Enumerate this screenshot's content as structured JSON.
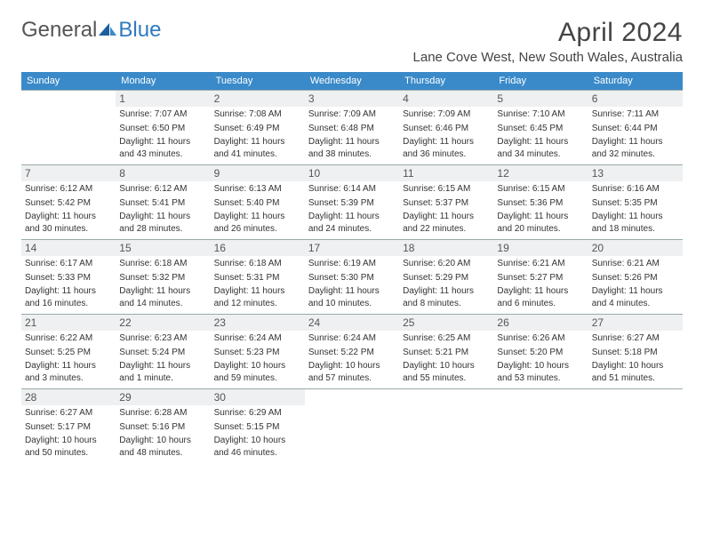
{
  "logo": {
    "part1": "General",
    "part2": "Blue"
  },
  "title": "April 2024",
  "location": "Lane Cove West, New South Wales, Australia",
  "colors": {
    "header_bg": "#3a8ac9",
    "daynum_bg": "#eef0f1",
    "row_border": "#9aa5aa",
    "logo_blue": "#2f7abf"
  },
  "weekdays": [
    "Sunday",
    "Monday",
    "Tuesday",
    "Wednesday",
    "Thursday",
    "Friday",
    "Saturday"
  ],
  "weeks": [
    [
      {
        "day": "",
        "sunrise": "",
        "sunset": "",
        "daylight": ""
      },
      {
        "day": "1",
        "sunrise": "Sunrise: 7:07 AM",
        "sunset": "Sunset: 6:50 PM",
        "daylight": "Daylight: 11 hours and 43 minutes."
      },
      {
        "day": "2",
        "sunrise": "Sunrise: 7:08 AM",
        "sunset": "Sunset: 6:49 PM",
        "daylight": "Daylight: 11 hours and 41 minutes."
      },
      {
        "day": "3",
        "sunrise": "Sunrise: 7:09 AM",
        "sunset": "Sunset: 6:48 PM",
        "daylight": "Daylight: 11 hours and 38 minutes."
      },
      {
        "day": "4",
        "sunrise": "Sunrise: 7:09 AM",
        "sunset": "Sunset: 6:46 PM",
        "daylight": "Daylight: 11 hours and 36 minutes."
      },
      {
        "day": "5",
        "sunrise": "Sunrise: 7:10 AM",
        "sunset": "Sunset: 6:45 PM",
        "daylight": "Daylight: 11 hours and 34 minutes."
      },
      {
        "day": "6",
        "sunrise": "Sunrise: 7:11 AM",
        "sunset": "Sunset: 6:44 PM",
        "daylight": "Daylight: 11 hours and 32 minutes."
      }
    ],
    [
      {
        "day": "7",
        "sunrise": "Sunrise: 6:12 AM",
        "sunset": "Sunset: 5:42 PM",
        "daylight": "Daylight: 11 hours and 30 minutes."
      },
      {
        "day": "8",
        "sunrise": "Sunrise: 6:12 AM",
        "sunset": "Sunset: 5:41 PM",
        "daylight": "Daylight: 11 hours and 28 minutes."
      },
      {
        "day": "9",
        "sunrise": "Sunrise: 6:13 AM",
        "sunset": "Sunset: 5:40 PM",
        "daylight": "Daylight: 11 hours and 26 minutes."
      },
      {
        "day": "10",
        "sunrise": "Sunrise: 6:14 AM",
        "sunset": "Sunset: 5:39 PM",
        "daylight": "Daylight: 11 hours and 24 minutes."
      },
      {
        "day": "11",
        "sunrise": "Sunrise: 6:15 AM",
        "sunset": "Sunset: 5:37 PM",
        "daylight": "Daylight: 11 hours and 22 minutes."
      },
      {
        "day": "12",
        "sunrise": "Sunrise: 6:15 AM",
        "sunset": "Sunset: 5:36 PM",
        "daylight": "Daylight: 11 hours and 20 minutes."
      },
      {
        "day": "13",
        "sunrise": "Sunrise: 6:16 AM",
        "sunset": "Sunset: 5:35 PM",
        "daylight": "Daylight: 11 hours and 18 minutes."
      }
    ],
    [
      {
        "day": "14",
        "sunrise": "Sunrise: 6:17 AM",
        "sunset": "Sunset: 5:33 PM",
        "daylight": "Daylight: 11 hours and 16 minutes."
      },
      {
        "day": "15",
        "sunrise": "Sunrise: 6:18 AM",
        "sunset": "Sunset: 5:32 PM",
        "daylight": "Daylight: 11 hours and 14 minutes."
      },
      {
        "day": "16",
        "sunrise": "Sunrise: 6:18 AM",
        "sunset": "Sunset: 5:31 PM",
        "daylight": "Daylight: 11 hours and 12 minutes."
      },
      {
        "day": "17",
        "sunrise": "Sunrise: 6:19 AM",
        "sunset": "Sunset: 5:30 PM",
        "daylight": "Daylight: 11 hours and 10 minutes."
      },
      {
        "day": "18",
        "sunrise": "Sunrise: 6:20 AM",
        "sunset": "Sunset: 5:29 PM",
        "daylight": "Daylight: 11 hours and 8 minutes."
      },
      {
        "day": "19",
        "sunrise": "Sunrise: 6:21 AM",
        "sunset": "Sunset: 5:27 PM",
        "daylight": "Daylight: 11 hours and 6 minutes."
      },
      {
        "day": "20",
        "sunrise": "Sunrise: 6:21 AM",
        "sunset": "Sunset: 5:26 PM",
        "daylight": "Daylight: 11 hours and 4 minutes."
      }
    ],
    [
      {
        "day": "21",
        "sunrise": "Sunrise: 6:22 AM",
        "sunset": "Sunset: 5:25 PM",
        "daylight": "Daylight: 11 hours and 3 minutes."
      },
      {
        "day": "22",
        "sunrise": "Sunrise: 6:23 AM",
        "sunset": "Sunset: 5:24 PM",
        "daylight": "Daylight: 11 hours and 1 minute."
      },
      {
        "day": "23",
        "sunrise": "Sunrise: 6:24 AM",
        "sunset": "Sunset: 5:23 PM",
        "daylight": "Daylight: 10 hours and 59 minutes."
      },
      {
        "day": "24",
        "sunrise": "Sunrise: 6:24 AM",
        "sunset": "Sunset: 5:22 PM",
        "daylight": "Daylight: 10 hours and 57 minutes."
      },
      {
        "day": "25",
        "sunrise": "Sunrise: 6:25 AM",
        "sunset": "Sunset: 5:21 PM",
        "daylight": "Daylight: 10 hours and 55 minutes."
      },
      {
        "day": "26",
        "sunrise": "Sunrise: 6:26 AM",
        "sunset": "Sunset: 5:20 PM",
        "daylight": "Daylight: 10 hours and 53 minutes."
      },
      {
        "day": "27",
        "sunrise": "Sunrise: 6:27 AM",
        "sunset": "Sunset: 5:18 PM",
        "daylight": "Daylight: 10 hours and 51 minutes."
      }
    ],
    [
      {
        "day": "28",
        "sunrise": "Sunrise: 6:27 AM",
        "sunset": "Sunset: 5:17 PM",
        "daylight": "Daylight: 10 hours and 50 minutes."
      },
      {
        "day": "29",
        "sunrise": "Sunrise: 6:28 AM",
        "sunset": "Sunset: 5:16 PM",
        "daylight": "Daylight: 10 hours and 48 minutes."
      },
      {
        "day": "30",
        "sunrise": "Sunrise: 6:29 AM",
        "sunset": "Sunset: 5:15 PM",
        "daylight": "Daylight: 10 hours and 46 minutes."
      },
      {
        "day": "",
        "sunrise": "",
        "sunset": "",
        "daylight": ""
      },
      {
        "day": "",
        "sunrise": "",
        "sunset": "",
        "daylight": ""
      },
      {
        "day": "",
        "sunrise": "",
        "sunset": "",
        "daylight": ""
      },
      {
        "day": "",
        "sunrise": "",
        "sunset": "",
        "daylight": ""
      }
    ]
  ]
}
